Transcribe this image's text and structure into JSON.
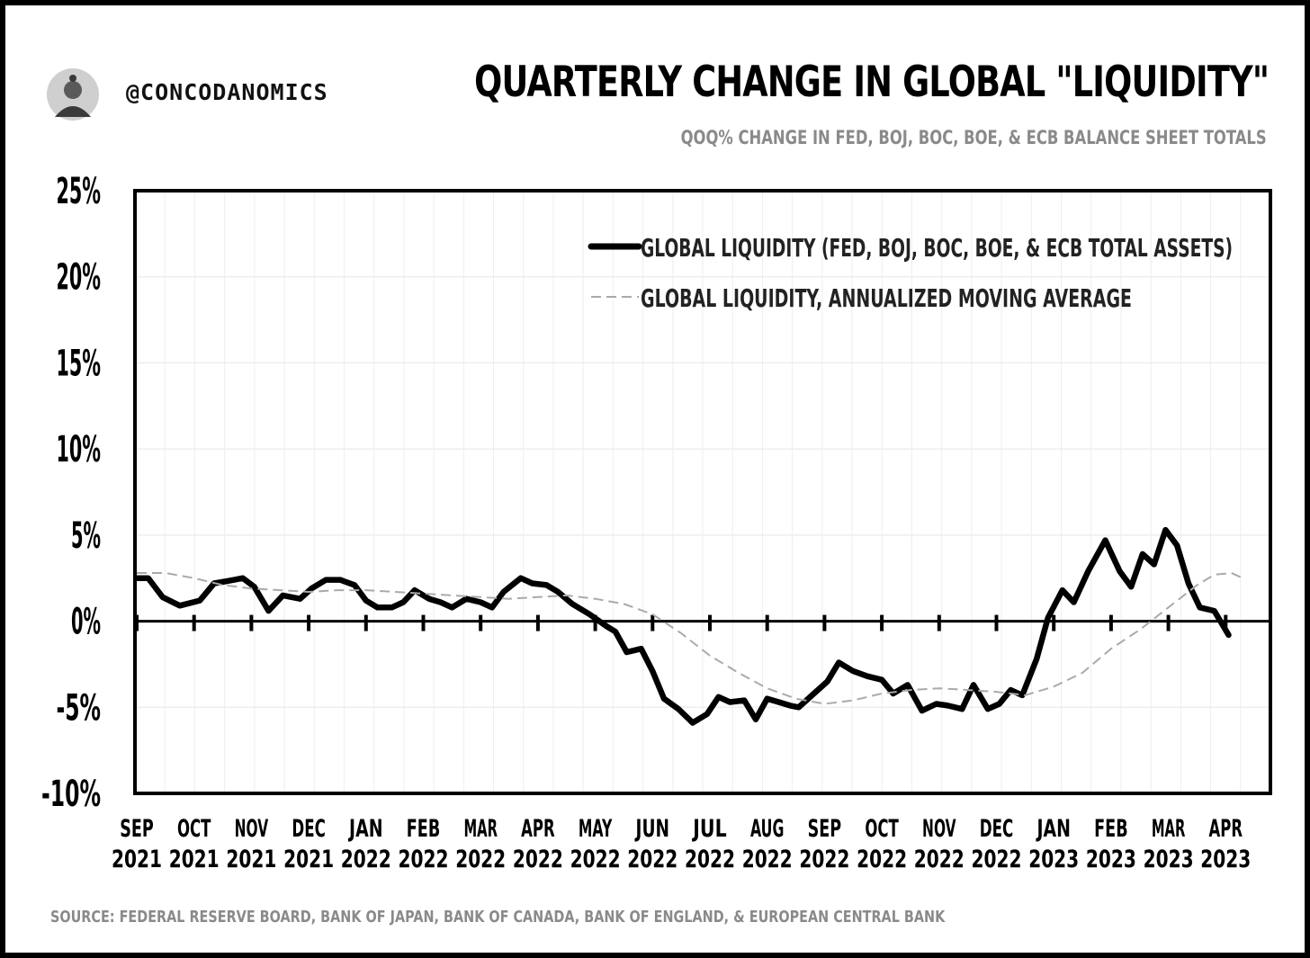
{
  "header": {
    "handle": "@CONCODANOMICS",
    "title": "QUARTERLY CHANGE IN GLOBAL \"LIQUIDITY\"",
    "subtitle": "QOQ% CHANGE IN FED, BOJ, BOC, BOE, & ECB BALANCE SHEET TOTALS"
  },
  "footer": {
    "source": "SOURCE: FEDERAL RESERVE BOARD, BANK OF JAPAN, BANK OF CANADA, BANK OF ENGLAND, & EUROPEAN CENTRAL BANK"
  },
  "colors": {
    "series_main": "#000000",
    "series_ma": "#aaaaaa",
    "grid": "#eeeeee",
    "muted_text": "#8a8a8a"
  },
  "chart_data": {
    "type": "line",
    "title": "QUARTERLY CHANGE IN GLOBAL \"LIQUIDITY\"",
    "subtitle": "QOQ% CHANGE IN FED, BOJ, BOC, BOE, & ECB BALANCE SHEET TOTALS",
    "ylim": [
      -10,
      25
    ],
    "xlim": [
      0,
      19.3
    ],
    "y_ticks": [
      {
        "value": 25,
        "label": "25%"
      },
      {
        "value": 20,
        "label": "20%"
      },
      {
        "value": 15,
        "label": "15%"
      },
      {
        "value": 10,
        "label": "10%"
      },
      {
        "value": 5,
        "label": "5%"
      },
      {
        "value": 0,
        "label": "0%"
      },
      {
        "value": -5,
        "label": "-5%"
      },
      {
        "value": -10,
        "label": "-10%"
      }
    ],
    "x_ticks": [
      {
        "value": 0,
        "label1": "SEP",
        "label2": "2021"
      },
      {
        "value": 1,
        "label1": "OCT",
        "label2": "2021"
      },
      {
        "value": 2,
        "label1": "NOV",
        "label2": "2021"
      },
      {
        "value": 3,
        "label1": "DEC",
        "label2": "2021"
      },
      {
        "value": 4,
        "label1": "JAN",
        "label2": "2022"
      },
      {
        "value": 5,
        "label1": "FEB",
        "label2": "2022"
      },
      {
        "value": 6,
        "label1": "MAR",
        "label2": "2022"
      },
      {
        "value": 7,
        "label1": "APR",
        "label2": "2022"
      },
      {
        "value": 8,
        "label1": "MAY",
        "label2": "2022"
      },
      {
        "value": 9,
        "label1": "JUN",
        "label2": "2022"
      },
      {
        "value": 10,
        "label1": "JUL",
        "label2": "2022"
      },
      {
        "value": 11,
        "label1": "AUG",
        "label2": "2022"
      },
      {
        "value": 12,
        "label1": "SEP",
        "label2": "2022"
      },
      {
        "value": 13,
        "label1": "OCT",
        "label2": "2022"
      },
      {
        "value": 14,
        "label1": "NOV",
        "label2": "2022"
      },
      {
        "value": 15,
        "label1": "DEC",
        "label2": "2022"
      },
      {
        "value": 16,
        "label1": "JAN",
        "label2": "2023"
      },
      {
        "value": 17,
        "label1": "FEB",
        "label2": "2023"
      },
      {
        "value": 18,
        "label1": "MAR",
        "label2": "2023"
      },
      {
        "value": 19,
        "label1": "APR",
        "label2": "2023"
      }
    ],
    "grid": true,
    "legend_position": "top-right",
    "series": [
      {
        "name": "GLOBAL LIQUIDITY (FED, BOJ, BOC, BOE, & ECB TOTAL ASSETS)",
        "style": "solid",
        "points": [
          [
            0.0,
            2.5
          ],
          [
            0.2,
            2.5
          ],
          [
            0.45,
            1.4
          ],
          [
            0.75,
            0.9
          ],
          [
            1.1,
            1.2
          ],
          [
            1.35,
            2.2
          ],
          [
            1.7,
            2.4
          ],
          [
            1.85,
            2.5
          ],
          [
            2.05,
            2.0
          ],
          [
            2.3,
            0.6
          ],
          [
            2.55,
            1.5
          ],
          [
            2.85,
            1.3
          ],
          [
            3.05,
            1.9
          ],
          [
            3.3,
            2.4
          ],
          [
            3.55,
            2.4
          ],
          [
            3.8,
            2.1
          ],
          [
            4.0,
            1.2
          ],
          [
            4.2,
            0.8
          ],
          [
            4.45,
            0.8
          ],
          [
            4.65,
            1.1
          ],
          [
            4.85,
            1.8
          ],
          [
            5.1,
            1.3
          ],
          [
            5.3,
            1.1
          ],
          [
            5.5,
            0.8
          ],
          [
            5.75,
            1.3
          ],
          [
            6.0,
            1.1
          ],
          [
            6.2,
            0.8
          ],
          [
            6.4,
            1.7
          ],
          [
            6.7,
            2.5
          ],
          [
            6.9,
            2.2
          ],
          [
            7.15,
            2.1
          ],
          [
            7.35,
            1.7
          ],
          [
            7.6,
            1.0
          ],
          [
            7.9,
            0.4
          ],
          [
            8.2,
            -0.3
          ],
          [
            8.35,
            -0.6
          ],
          [
            8.55,
            -1.8
          ],
          [
            8.8,
            -1.6
          ],
          [
            9.0,
            -2.9
          ],
          [
            9.2,
            -4.5
          ],
          [
            9.45,
            -5.1
          ],
          [
            9.7,
            -5.9
          ],
          [
            9.95,
            -5.4
          ],
          [
            10.15,
            -4.4
          ],
          [
            10.35,
            -4.7
          ],
          [
            10.6,
            -4.6
          ],
          [
            10.8,
            -5.7
          ],
          [
            11.0,
            -4.5
          ],
          [
            11.2,
            -4.7
          ],
          [
            11.4,
            -4.9
          ],
          [
            11.55,
            -5.0
          ],
          [
            11.85,
            -4.1
          ],
          [
            12.05,
            -3.5
          ],
          [
            12.25,
            -2.4
          ],
          [
            12.5,
            -2.9
          ],
          [
            12.75,
            -3.2
          ],
          [
            13.0,
            -3.4
          ],
          [
            13.2,
            -4.2
          ],
          [
            13.45,
            -3.7
          ],
          [
            13.7,
            -5.2
          ],
          [
            13.95,
            -4.8
          ],
          [
            14.15,
            -4.9
          ],
          [
            14.4,
            -5.1
          ],
          [
            14.6,
            -3.7
          ],
          [
            14.85,
            -5.1
          ],
          [
            15.05,
            -4.8
          ],
          [
            15.25,
            -4.0
          ],
          [
            15.45,
            -4.3
          ],
          [
            15.7,
            -2.2
          ],
          [
            15.9,
            0.2
          ],
          [
            16.15,
            1.8
          ],
          [
            16.35,
            1.1
          ],
          [
            16.6,
            2.9
          ],
          [
            16.9,
            4.7
          ],
          [
            17.15,
            2.9
          ],
          [
            17.35,
            2.0
          ],
          [
            17.55,
            3.9
          ],
          [
            17.75,
            3.3
          ],
          [
            17.95,
            5.3
          ],
          [
            18.15,
            4.4
          ],
          [
            18.35,
            2.2
          ],
          [
            18.55,
            0.8
          ],
          [
            18.8,
            0.6
          ],
          [
            19.05,
            -0.8
          ]
        ]
      },
      {
        "name": "GLOBAL LIQUIDITY, ANNUALIZED MOVING AVERAGE",
        "style": "dashed",
        "points": [
          [
            0.0,
            2.8
          ],
          [
            0.5,
            2.8
          ],
          [
            1.0,
            2.5
          ],
          [
            1.5,
            2.1
          ],
          [
            2.0,
            1.9
          ],
          [
            2.5,
            1.8
          ],
          [
            3.0,
            1.7
          ],
          [
            3.5,
            1.8
          ],
          [
            4.0,
            1.8
          ],
          [
            4.5,
            1.7
          ],
          [
            5.0,
            1.6
          ],
          [
            5.5,
            1.5
          ],
          [
            6.0,
            1.4
          ],
          [
            6.5,
            1.3
          ],
          [
            7.0,
            1.4
          ],
          [
            7.5,
            1.5
          ],
          [
            8.0,
            1.3
          ],
          [
            8.5,
            1.0
          ],
          [
            9.0,
            0.4
          ],
          [
            9.5,
            -0.7
          ],
          [
            10.0,
            -2.0
          ],
          [
            10.5,
            -3.0
          ],
          [
            11.0,
            -3.9
          ],
          [
            11.5,
            -4.5
          ],
          [
            12.0,
            -4.8
          ],
          [
            12.5,
            -4.6
          ],
          [
            13.0,
            -4.2
          ],
          [
            13.5,
            -4.0
          ],
          [
            14.0,
            -3.9
          ],
          [
            14.5,
            -4.0
          ],
          [
            15.0,
            -4.1
          ],
          [
            15.5,
            -4.3
          ],
          [
            16.0,
            -3.8
          ],
          [
            16.5,
            -3.0
          ],
          [
            17.0,
            -1.6
          ],
          [
            17.5,
            -0.5
          ],
          [
            18.0,
            0.8
          ],
          [
            18.5,
            2.1
          ],
          [
            18.8,
            2.7
          ],
          [
            19.1,
            2.8
          ],
          [
            19.3,
            2.5
          ]
        ]
      }
    ]
  }
}
